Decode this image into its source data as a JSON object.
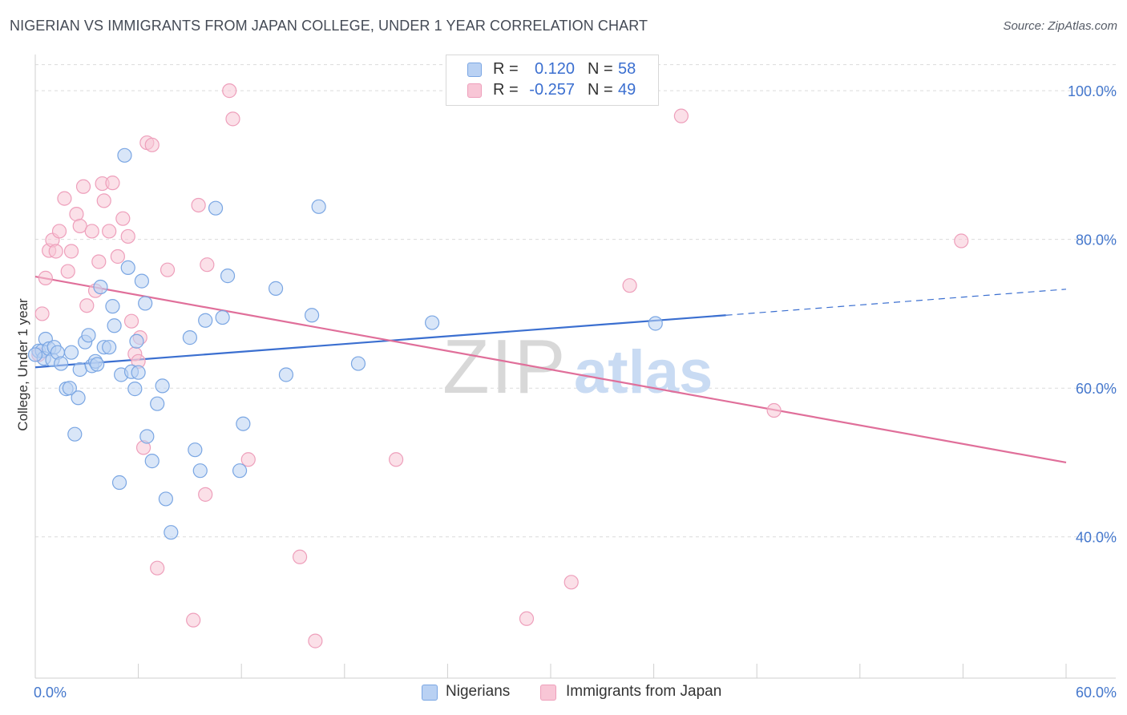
{
  "title": "NIGERIAN VS IMMIGRANTS FROM JAPAN COLLEGE, UNDER 1 YEAR CORRELATION CHART",
  "source": "Source: ZipAtlas.com",
  "watermark": {
    "zip": "ZIP",
    "atlas": "atlas"
  },
  "colors": {
    "blue": "#3b6fd0",
    "blue_fill": "#b9d1f3",
    "blue_stroke": "#7aa6e3",
    "pink": "#e06f9a",
    "pink_fill": "#f8c6d6",
    "pink_stroke": "#ee9fbb",
    "grid": "#dcdcdc",
    "axis_label": "#4477cc"
  },
  "legend": {
    "rows": [
      {
        "r_label": "R =",
        "r_value": "0.120",
        "n_label": "N =",
        "n_value": "58",
        "series": "blue"
      },
      {
        "r_label": "R =",
        "r_value": "-0.257",
        "n_label": "N =",
        "n_value": "49",
        "series": "pink"
      }
    ]
  },
  "bottom_legend": {
    "items": [
      {
        "label": "Nigerians",
        "series": "blue"
      },
      {
        "label": "Immigrants from Japan",
        "series": "pink"
      }
    ]
  },
  "chart_data": {
    "type": "scatter",
    "title": "NIGERIAN VS IMMIGRANTS FROM JAPAN COLLEGE, UNDER 1 YEAR CORRELATION CHART",
    "xlabel": "",
    "ylabel": "College, Under 1 year",
    "xlim": [
      0,
      60
    ],
    "ylim": [
      21,
      104
    ],
    "x_tick_labels": [
      {
        "value": 0,
        "label": "0.0%"
      },
      {
        "value": 60,
        "label": "60.0%"
      }
    ],
    "y_tick_labels": [
      {
        "value": 100,
        "label": "100.0%"
      },
      {
        "value": 80,
        "label": "80.0%"
      },
      {
        "value": 60,
        "label": "60.0%"
      },
      {
        "value": 40,
        "label": "40.0%"
      }
    ],
    "grid": true,
    "legend_position": "top-center",
    "series": [
      {
        "name": "Nigerians",
        "color": "blue",
        "R": 0.12,
        "N": 58,
        "trend": {
          "x0": 0,
          "y0": 62.8,
          "x1": 40.2,
          "y1": 69.8,
          "dashed_to_x": 60,
          "dashed_to_y": 73.3
        },
        "points": [
          [
            0.2,
            65.0
          ],
          [
            0.4,
            65.0
          ],
          [
            0.5,
            64.0
          ],
          [
            0.6,
            66.6
          ],
          [
            0.8,
            65.3
          ],
          [
            1.0,
            63.8
          ],
          [
            1.1,
            65.5
          ],
          [
            1.3,
            64.8
          ],
          [
            1.5,
            63.3
          ],
          [
            1.8,
            59.9
          ],
          [
            2.0,
            60.0
          ],
          [
            2.1,
            64.8
          ],
          [
            2.3,
            53.8
          ],
          [
            2.5,
            58.7
          ],
          [
            2.6,
            62.5
          ],
          [
            2.9,
            66.2
          ],
          [
            3.1,
            67.1
          ],
          [
            3.3,
            63.0
          ],
          [
            3.5,
            63.6
          ],
          [
            3.6,
            63.2
          ],
          [
            3.8,
            73.6
          ],
          [
            4.0,
            65.5
          ],
          [
            4.3,
            65.5
          ],
          [
            4.5,
            71.0
          ],
          [
            4.6,
            68.4
          ],
          [
            4.9,
            47.3
          ],
          [
            5.0,
            61.8
          ],
          [
            5.2,
            91.3
          ],
          [
            5.4,
            76.2
          ],
          [
            5.6,
            62.2
          ],
          [
            5.8,
            59.9
          ],
          [
            5.9,
            66.3
          ],
          [
            6.0,
            62.1
          ],
          [
            6.2,
            74.4
          ],
          [
            6.4,
            71.4
          ],
          [
            6.5,
            53.5
          ],
          [
            6.8,
            50.2
          ],
          [
            7.1,
            57.9
          ],
          [
            7.4,
            60.3
          ],
          [
            7.6,
            45.1
          ],
          [
            7.9,
            40.6
          ],
          [
            9.0,
            66.8
          ],
          [
            9.3,
            51.7
          ],
          [
            9.6,
            48.9
          ],
          [
            9.9,
            69.1
          ],
          [
            10.5,
            84.2
          ],
          [
            10.9,
            69.5
          ],
          [
            11.2,
            75.1
          ],
          [
            11.9,
            48.9
          ],
          [
            12.1,
            55.2
          ],
          [
            14.0,
            73.4
          ],
          [
            14.6,
            61.8
          ],
          [
            16.1,
            69.8
          ],
          [
            16.5,
            84.4
          ],
          [
            18.8,
            63.3
          ],
          [
            23.1,
            68.8
          ],
          [
            36.1,
            68.7
          ],
          [
            0.0,
            64.5
          ]
        ]
      },
      {
        "name": "Immigrants from Japan",
        "color": "pink",
        "R": -0.257,
        "N": 49,
        "trend": {
          "x0": 0,
          "y0": 75.0,
          "x1": 60,
          "y1": 50.0
        },
        "points": [
          [
            0.2,
            64.5
          ],
          [
            0.4,
            70.0
          ],
          [
            0.6,
            74.8
          ],
          [
            0.8,
            78.5
          ],
          [
            1.0,
            79.9
          ],
          [
            1.2,
            78.4
          ],
          [
            1.4,
            81.1
          ],
          [
            1.7,
            85.5
          ],
          [
            1.9,
            75.7
          ],
          [
            2.1,
            78.4
          ],
          [
            2.4,
            83.4
          ],
          [
            2.6,
            81.8
          ],
          [
            2.8,
            87.1
          ],
          [
            3.0,
            71.1
          ],
          [
            3.3,
            81.1
          ],
          [
            3.5,
            73.1
          ],
          [
            3.7,
            77.0
          ],
          [
            3.9,
            87.5
          ],
          [
            4.0,
            85.2
          ],
          [
            4.3,
            81.1
          ],
          [
            4.5,
            87.6
          ],
          [
            4.8,
            77.7
          ],
          [
            5.1,
            82.8
          ],
          [
            5.4,
            80.4
          ],
          [
            5.6,
            69.0
          ],
          [
            5.8,
            64.6
          ],
          [
            6.0,
            63.6
          ],
          [
            6.1,
            66.8
          ],
          [
            6.3,
            52.0
          ],
          [
            6.5,
            93.0
          ],
          [
            6.8,
            92.7
          ],
          [
            7.1,
            35.8
          ],
          [
            7.7,
            75.9
          ],
          [
            9.2,
            28.8
          ],
          [
            9.5,
            84.6
          ],
          [
            9.9,
            45.7
          ],
          [
            10.0,
            76.6
          ],
          [
            11.3,
            100.0
          ],
          [
            11.5,
            96.2
          ],
          [
            12.4,
            50.4
          ],
          [
            15.4,
            37.3
          ],
          [
            16.3,
            26.0
          ],
          [
            21.0,
            50.4
          ],
          [
            28.6,
            29.0
          ],
          [
            31.2,
            33.9
          ],
          [
            34.6,
            73.8
          ],
          [
            37.6,
            96.6
          ],
          [
            43.0,
            57.0
          ],
          [
            53.9,
            79.8
          ]
        ]
      }
    ]
  }
}
